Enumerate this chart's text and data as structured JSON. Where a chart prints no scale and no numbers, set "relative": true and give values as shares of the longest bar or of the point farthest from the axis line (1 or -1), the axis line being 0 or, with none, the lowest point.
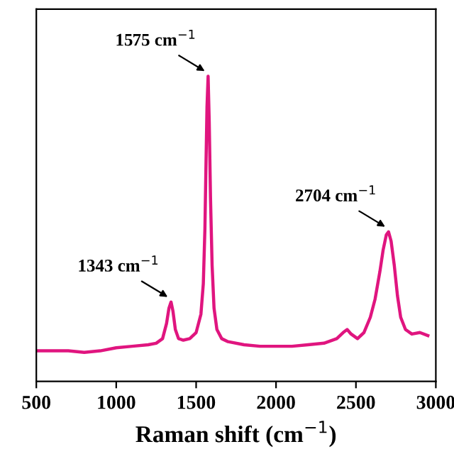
{
  "chart_data": {
    "type": "line",
    "relative": true,
    "xlabel": "Raman shift (cm$^{−1}$)",
    "xlim": [
      500,
      3000
    ],
    "xticks": [
      500,
      1000,
      1500,
      2000,
      2500,
      3000
    ],
    "x": [
      500,
      600,
      700,
      800,
      900,
      1000,
      1100,
      1200,
      1250,
      1290,
      1315,
      1330,
      1343,
      1355,
      1370,
      1390,
      1420,
      1460,
      1500,
      1530,
      1545,
      1555,
      1562,
      1568,
      1575,
      1582,
      1590,
      1600,
      1612,
      1630,
      1660,
      1700,
      1800,
      1900,
      2000,
      2100,
      2200,
      2300,
      2380,
      2420,
      2445,
      2470,
      2510,
      2550,
      2590,
      2620,
      2650,
      2670,
      2690,
      2704,
      2720,
      2740,
      2760,
      2780,
      2810,
      2850,
      2900,
      2950
    ],
    "series": [
      {
        "color": "#e0157f",
        "values": [
          0.1,
          0.1,
          0.1,
          0.095,
          0.1,
          0.11,
          0.115,
          0.12,
          0.125,
          0.14,
          0.19,
          0.24,
          0.26,
          0.23,
          0.17,
          0.14,
          0.135,
          0.14,
          0.16,
          0.22,
          0.32,
          0.5,
          0.72,
          0.9,
          1.0,
          0.85,
          0.6,
          0.38,
          0.24,
          0.17,
          0.14,
          0.13,
          0.12,
          0.115,
          0.115,
          0.115,
          0.12,
          0.125,
          0.14,
          0.16,
          0.17,
          0.155,
          0.14,
          0.16,
          0.21,
          0.27,
          0.36,
          0.43,
          0.48,
          0.49,
          0.46,
          0.38,
          0.28,
          0.21,
          0.17,
          0.155,
          0.16,
          0.15
        ]
      }
    ],
    "annotations": [
      {
        "text": "1343 cm$^{−1}$",
        "x": 1343,
        "y": 0.26
      },
      {
        "text": "1575 cm$^{−1}$",
        "x": 1575,
        "y": 1.0
      },
      {
        "text": "2704 cm$^{−1}$",
        "x": 2704,
        "y": 0.49
      }
    ],
    "grid": false,
    "legend": false,
    "line_style": "solid",
    "marker": "none"
  }
}
